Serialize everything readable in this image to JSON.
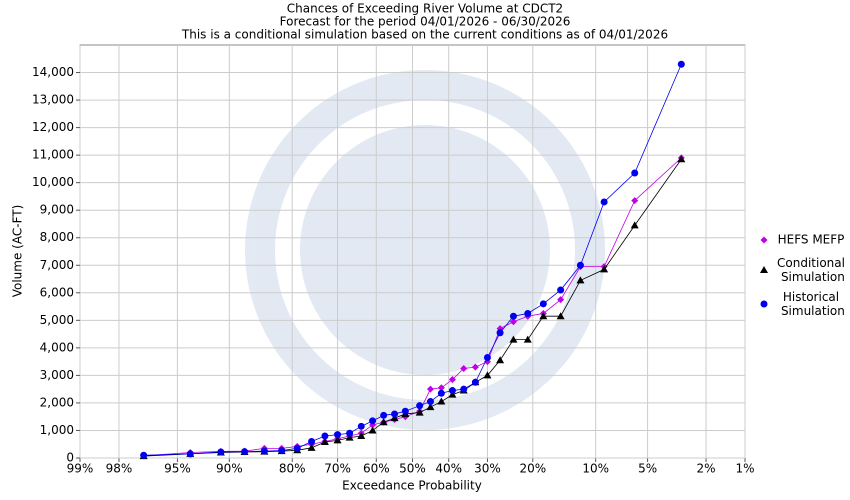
{
  "chart_data": {
    "type": "line",
    "title": [
      "Chances of Exceeding River Volume at CDCT2",
      "Forecast for the period 04/01/2026 - 06/30/2026",
      "This is a conditional simulation based on the current conditions as of 04/01/2026"
    ],
    "x_label": "Exceedance Probability",
    "y_label": "Volume (AC-FT)",
    "x_scale": "probit",
    "grid": true,
    "legend": "right",
    "xlim": [
      99,
      1
    ],
    "xticks": [
      {
        "value": 99,
        "label": "99%"
      },
      {
        "value": 98,
        "label": "98%"
      },
      {
        "value": 95,
        "label": "95%"
      },
      {
        "value": 90,
        "label": "90%"
      },
      {
        "value": 80,
        "label": "80%"
      },
      {
        "value": 70,
        "label": "70%"
      },
      {
        "value": 60,
        "label": "60%"
      },
      {
        "value": 50,
        "label": "50%"
      },
      {
        "value": 40,
        "label": "40%"
      },
      {
        "value": 30,
        "label": "30%"
      },
      {
        "value": 20,
        "label": "20%"
      },
      {
        "value": 10,
        "label": "10%"
      },
      {
        "value": 5,
        "label": "5%"
      },
      {
        "value": 2,
        "label": "2%"
      },
      {
        "value": 1,
        "label": "1%"
      }
    ],
    "ylim": [
      0,
      15000
    ],
    "yticks": [
      0,
      {
        "value": 1000,
        "label": "1,000"
      },
      {
        "value": 2000,
        "label": "2,000"
      },
      {
        "value": 3000,
        "label": "3,000"
      },
      {
        "value": 4000,
        "label": "4,000"
      },
      {
        "value": 5000,
        "label": "5,000"
      },
      {
        "value": 6000,
        "label": "6,000"
      },
      {
        "value": 7000,
        "label": "7,000"
      },
      {
        "value": 8000,
        "label": "8,000"
      },
      {
        "value": 9000,
        "label": "9,000"
      },
      {
        "value": 10000,
        "label": "10,000"
      },
      {
        "value": 11000,
        "label": "11,000"
      },
      {
        "value": 12000,
        "label": "12,000"
      },
      {
        "value": 13000,
        "label": "13,000"
      },
      {
        "value": 14000,
        "label": "14,000"
      }
    ],
    "x": [
      97,
      94,
      91,
      88,
      85,
      82,
      79,
      76,
      73,
      70,
      67,
      64,
      61,
      58,
      55,
      52,
      48,
      45,
      42,
      39,
      36,
      33,
      30,
      27,
      24,
      21,
      18,
      15,
      12,
      9,
      6,
      3
    ],
    "series": [
      {
        "name": "HEFS MEFP",
        "color": "#c000e8",
        "marker": "diamond",
        "values": [
          80,
          200,
          240,
          250,
          350,
          350,
          420,
          500,
          600,
          700,
          800,
          900,
          1200,
          1300,
          1400,
          1500,
          1700,
          2500,
          2550,
          2850,
          3250,
          3300,
          3500,
          4700,
          4950,
          5150,
          5250,
          5750,
          6950,
          6950,
          9350,
          10900
        ]
      },
      {
        "name": "Conditional Simulation",
        "color": "#000000",
        "marker": "triangle",
        "values": [
          70,
          150,
          200,
          220,
          230,
          250,
          280,
          370,
          580,
          640,
          740,
          800,
          1000,
          1300,
          1450,
          1600,
          1650,
          1850,
          2050,
          2300,
          2450,
          2750,
          3000,
          3550,
          4300,
          4300,
          5150,
          5150,
          6450,
          6850,
          8450,
          10850
        ]
      },
      {
        "name": "Historical Simulation",
        "color": "#0000ee",
        "marker": "circle",
        "values": [
          100,
          150,
          220,
          230,
          250,
          270,
          350,
          600,
          800,
          850,
          900,
          1150,
          1350,
          1550,
          1600,
          1700,
          1900,
          2050,
          2350,
          2450,
          2500,
          2750,
          3650,
          4550,
          5150,
          5250,
          5600,
          6100,
          7000,
          9300,
          10350,
          14300
        ]
      }
    ]
  }
}
